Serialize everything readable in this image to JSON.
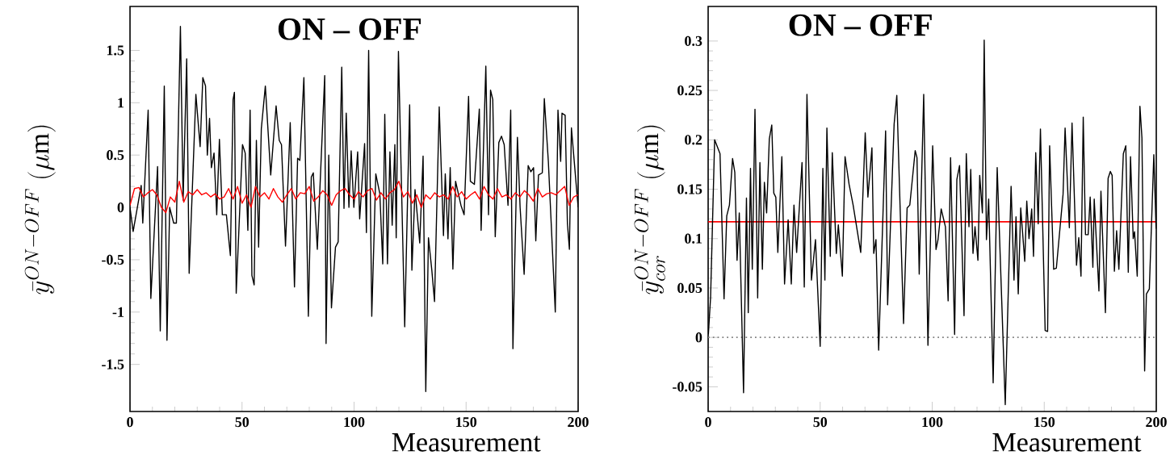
{
  "chart_data": [
    {
      "type": "line",
      "title": "ON – OFF",
      "xlabel": "Measurement",
      "ylabel": "\\bar{y}^{ON-OFF}\\ (\\mathrm{\\mu m})",
      "xlim": [
        0,
        200
      ],
      "xticks": [
        0,
        50,
        100,
        150,
        200
      ],
      "ylim": [
        -1.95,
        1.92
      ],
      "yticks": [
        -1.5,
        -1,
        -0.5,
        0,
        0.5,
        1,
        1.5
      ],
      "series": [
        {
          "color": "#000000",
          "x": [
            0,
            1.4,
            5,
            5.7,
            8.1,
            9.3,
            12.3,
            13.5,
            15.3,
            16.5,
            17.7,
            19.5,
            20.7,
            22.5,
            23.7,
            25.3,
            26.4,
            29.4,
            31.3,
            32.5,
            33.7,
            34.5,
            35.5,
            36.3,
            37.5,
            38.7,
            39.9,
            41.2,
            43,
            44.8,
            46,
            46.6,
            47.4,
            50.2,
            51.4,
            52.6,
            53.6,
            54.4,
            55.4,
            56.4,
            57.4,
            58.6,
            60.4,
            62.8,
            65.2,
            66.6,
            67.6,
            69.4,
            71.5,
            73.4,
            74.8,
            75.8,
            77.6,
            79.6,
            80.9,
            81.8,
            83.6,
            86.9,
            87.5,
            88.7,
            89.9,
            91.7,
            92.9,
            94.5,
            95.5,
            96.5,
            97.7,
            98.7,
            99.9,
            101.6,
            102.5,
            104.7,
            105.5,
            106.5,
            107.9,
            109.7,
            111.5,
            112.8,
            113.7,
            114.9,
            116,
            117,
            118.2,
            118.8,
            119.8,
            122.6,
            124.8,
            125.8,
            127.2,
            129.3,
            130.8,
            132,
            133.2,
            134.7,
            135.9,
            138,
            139.9,
            140.7,
            141.9,
            142.9,
            144.1,
            145.3,
            147.7,
            149.1,
            151.1,
            151.9,
            153.7,
            155.9,
            156.7,
            158.8,
            160,
            160.9,
            161.9,
            163,
            164.6,
            165.8,
            167,
            168.7,
            169.9,
            170.9,
            172.9,
            174.1,
            175.9,
            177.7,
            178.9,
            180.1,
            181.1,
            182.3,
            184,
            184.9,
            186.7,
            189.8,
            191,
            192.2,
            192.8,
            194.2,
            195.2,
            196.1,
            197,
            199.2,
            200
          ],
          "values": [
            0,
            -0.23,
            0.21,
            -0.15,
            0.93,
            -0.87,
            0.39,
            -1.18,
            1.16,
            -1.27,
            0,
            -0.15,
            -0.15,
            1.73,
            0.07,
            1.42,
            -0.63,
            1.08,
            0.58,
            1.24,
            1.16,
            0.5,
            0.85,
            0.38,
            0.52,
            -0.07,
            0.65,
            -0.07,
            -0.07,
            -0.46,
            1.03,
            1.1,
            -0.82,
            0.6,
            0.52,
            -0.22,
            0.93,
            -0.65,
            -0.74,
            0.64,
            -0.38,
            0.75,
            1.16,
            0.31,
            0.97,
            0.64,
            0.6,
            -0.37,
            0.81,
            -0.76,
            0.47,
            0.45,
            1.24,
            -1.04,
            0.29,
            0.33,
            -0.4,
            1.26,
            -1.3,
            0.5,
            -0.96,
            -0.38,
            -0.33,
            1.34,
            -0.01,
            0.9,
            0,
            0.54,
            0,
            0.53,
            -0.11,
            0.61,
            -0.24,
            1.5,
            -1.04,
            0.32,
            0.13,
            -0.54,
            0.89,
            -0.54,
            0.53,
            -0.17,
            0.6,
            -0.29,
            1.49,
            -1.14,
            0.98,
            -0.6,
            0.17,
            -0.34,
            0.49,
            -1.76,
            -0.29,
            -0.6,
            -0.9,
            0.96,
            -0.27,
            0.32,
            -0.3,
            0.38,
            -0.59,
            0.25,
            0.02,
            -0.07,
            1.06,
            0.25,
            0.22,
            0.94,
            -0.22,
            1.35,
            -0.07,
            1.12,
            1.03,
            -0.28,
            0.62,
            0.68,
            0.6,
            0.02,
            0.93,
            -1.35,
            0.67,
            0,
            -0.64,
            0.4,
            0.34,
            0.38,
            -0.32,
            0.31,
            0.33,
            1.04,
            0.44,
            -1.0,
            0.93,
            0.44,
            0.9,
            0.88,
            -0.15,
            -0.4,
            0.76,
            0.2,
            0
          ]
        },
        {
          "color": "#ff0000",
          "x": [
            0,
            2,
            4,
            6,
            8,
            10,
            12,
            14,
            16,
            18,
            20,
            22,
            24,
            26,
            28,
            30,
            32,
            34,
            36,
            38,
            40,
            42,
            44,
            46,
            48,
            50,
            52,
            54,
            56,
            58,
            60,
            62,
            64,
            66,
            68,
            70,
            72,
            74,
            76,
            78,
            80,
            82,
            84,
            86,
            88,
            90,
            92,
            94,
            96,
            98,
            100,
            102,
            104,
            106,
            108,
            110,
            112,
            114,
            116,
            118,
            120,
            122,
            124,
            126,
            128,
            130,
            132,
            134,
            136,
            138,
            140,
            142,
            144,
            146,
            148,
            150,
            152,
            154,
            156,
            158,
            160,
            162,
            164,
            166,
            168,
            170,
            172,
            174,
            176,
            178,
            180,
            182,
            184,
            186,
            188,
            190,
            192,
            194,
            196,
            198,
            200
          ],
          "values": [
            0.02,
            0.18,
            0.19,
            0.1,
            0.14,
            0.17,
            0.12,
            0.0,
            -0.05,
            0.1,
            0.05,
            0.25,
            0.05,
            0.15,
            0.12,
            0.17,
            0.12,
            0.14,
            0.1,
            0.13,
            0.08,
            0.1,
            0.18,
            0.08,
            0.2,
            0.04,
            0.12,
            0.0,
            0.2,
            0.1,
            0.14,
            0.08,
            0.18,
            0.1,
            0.05,
            0.12,
            0.18,
            0.08,
            0.14,
            0.13,
            0.2,
            0.06,
            0.1,
            0.16,
            0.12,
            0.02,
            0.12,
            0.16,
            0.18,
            0.12,
            0.08,
            0.15,
            0.1,
            0.16,
            0.18,
            0.07,
            0.14,
            0.08,
            0.14,
            0.17,
            0.25,
            0.1,
            0.15,
            0.04,
            0.12,
            0.0,
            0.12,
            0.08,
            0.14,
            0.1,
            0.12,
            0.08,
            0.2,
            0.1,
            0.15,
            0.08,
            0.12,
            0.15,
            0.08,
            0.2,
            0.12,
            0.08,
            0.18,
            0.1,
            0.12,
            0.08,
            0.14,
            0.1,
            0.16,
            0.12,
            0.06,
            0.18,
            0.1,
            0.13,
            0.14,
            0.12,
            0.16,
            0.2,
            0.02,
            0.1,
            0.12
          ]
        }
      ]
    },
    {
      "type": "line",
      "title": "ON – OFF",
      "xlabel": "Measurement",
      "ylabel": "\\bar{y}^{ON-OFF}_{cor}\\ (\\mathrm{\\mu m})",
      "xlim": [
        0,
        200
      ],
      "xticks": [
        0,
        50,
        100,
        150,
        200
      ],
      "ylim": [
        -0.075,
        0.335
      ],
      "yticks": [
        -0.05,
        0,
        0.05,
        0.1,
        0.15,
        0.2,
        0.25,
        0.3
      ],
      "ref_lines": [
        {
          "axis": "y",
          "value": 0.117,
          "color": "#ff0000",
          "line_style": "solid"
        },
        {
          "axis": "y",
          "value": 0,
          "color": "#808080",
          "line_style": "dotted"
        }
      ],
      "series": [
        {
          "color": "#000000",
          "x": [
            0.1,
            1.1,
            2.9,
            5.3,
            7.1,
            8.3,
            9.5,
            10.9,
            11.9,
            12.9,
            13.9,
            15.8,
            17.1,
            17.9,
            18.9,
            19.7,
            20.9,
            22.1,
            23.1,
            24.2,
            25.1,
            26.1,
            27.3,
            28.4,
            29.3,
            30.2,
            31.1,
            32.9,
            34.1,
            35.7,
            37.1,
            38.3,
            39.5,
            41.9,
            42.9,
            44.1,
            46.1,
            47.9,
            50,
            51.2,
            52.1,
            53,
            54.5,
            55.4,
            57.2,
            58.1,
            59.9,
            61.1,
            62.9,
            64.7,
            68.1,
            70.1,
            71.3,
            73.1,
            73.9,
            74.9,
            76.1,
            79.2,
            80.1,
            83,
            84.2,
            87.2,
            88.8,
            90,
            92.4,
            93.2,
            94.2,
            96.2,
            98.1,
            100.2,
            101.7,
            102.6,
            104,
            105.9,
            107.1,
            108.2,
            110,
            111,
            112.2,
            114.2,
            115.2,
            116.4,
            117.2,
            118.2,
            119.1,
            120.4,
            121.2,
            122.4,
            123.2,
            124.2,
            125.2,
            127.2,
            129,
            132.6,
            135.2,
            136.5,
            137.4,
            138.4,
            139.5,
            141.3,
            142.2,
            143.2,
            144.4,
            145.2,
            146.2,
            147.3,
            148.3,
            150.4,
            151.5,
            152.4,
            154.2,
            155.4,
            158.4,
            159.3,
            161.2,
            162.4,
            164.4,
            165.4,
            166.4,
            167.4,
            168.4,
            169.6,
            170.5,
            171.7,
            172.3,
            174.4,
            175.3,
            177.3,
            178.5,
            179.5,
            180.3,
            181.3,
            182.3,
            183.3,
            185.3,
            186.4,
            187.5,
            188.5,
            189.7,
            190.3,
            191.5,
            192.7,
            193.6,
            194.8,
            195.6,
            196.9,
            198.9,
            199.9
          ],
          "values": [
            0.003,
            0.041,
            0.2,
            0.186,
            0.039,
            0.123,
            0.134,
            0.181,
            0.167,
            0.078,
            0.126,
            -0.056,
            0.141,
            0.025,
            0.171,
            0.069,
            0.231,
            0.04,
            0.177,
            0.069,
            0.157,
            0.126,
            0.201,
            0.215,
            0.146,
            0.142,
            0.086,
            0.183,
            0.054,
            0.119,
            0.054,
            0.134,
            0.086,
            0.177,
            0.051,
            0.246,
            0.058,
            0.099,
            -0.009,
            0.171,
            0.058,
            0.212,
            0.082,
            0.187,
            0.085,
            0.114,
            0.062,
            0.183,
            0.155,
            0.134,
            0.086,
            0.207,
            0.142,
            0.192,
            0.085,
            0.099,
            -0.013,
            0.209,
            0.033,
            0.216,
            0.245,
            0.014,
            0.131,
            0.134,
            0.189,
            0.182,
            0.064,
            0.246,
            -0.008,
            0.194,
            0.089,
            0.099,
            0.13,
            0.112,
            0.037,
            0.182,
            0.003,
            0.16,
            0.174,
            0.022,
            0.186,
            0.112,
            0.17,
            0.085,
            0.112,
            0.078,
            0.164,
            0.126,
            0.301,
            0.099,
            0.14,
            -0.046,
            0.172,
            -0.068,
            0.153,
            0.058,
            0.122,
            0.044,
            0.131,
            0.077,
            0.138,
            0.1,
            0.13,
            0.082,
            0.187,
            0.115,
            0.211,
            0.007,
            0.006,
            0.194,
            0.069,
            0.07,
            0.145,
            0.212,
            0.111,
            0.217,
            0.073,
            0.101,
            0.062,
            0.223,
            0.104,
            0.104,
            0.142,
            0.071,
            0.14,
            0.047,
            0.148,
            0.025,
            0.161,
            0.168,
            0.164,
            0.067,
            0.108,
            0.069,
            0.186,
            0.194,
            0.066,
            0.183,
            0.1,
            0.107,
            0.062,
            0.234,
            0.202,
            -0.034,
            0.044,
            0.049,
            0.185,
            0.11
          ]
        }
      ]
    }
  ]
}
